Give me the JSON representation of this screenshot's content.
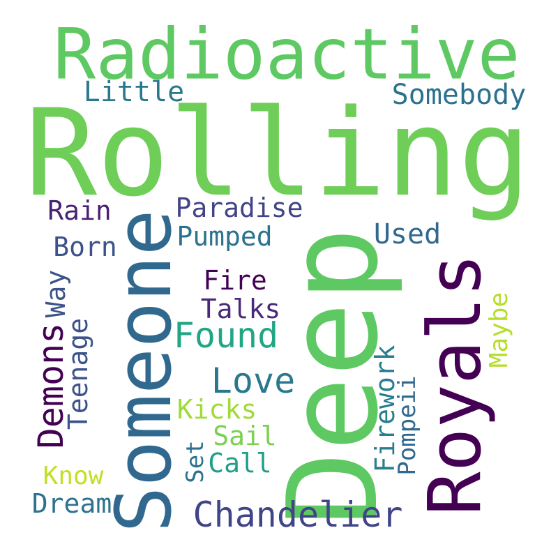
{
  "words": {
    "radioactive": {
      "text": "Radioactive",
      "color": "#5ec962"
    },
    "rolling": {
      "text": "Rolling",
      "color": "#6ece58"
    },
    "deep": {
      "text": "Deep",
      "color": "#5ec962"
    },
    "someone": {
      "text": "Someone",
      "color": "#31688e"
    },
    "royals": {
      "text": "Royals",
      "color": "#440154"
    },
    "little": {
      "text": "Little",
      "color": "#2a788e"
    },
    "somebody": {
      "text": "Somebody",
      "color": "#2c728e"
    },
    "rain": {
      "text": "Rain",
      "color": "#482173"
    },
    "paradise": {
      "text": "Paradise",
      "color": "#414487"
    },
    "pumped": {
      "text": "Pumped",
      "color": "#2c728e"
    },
    "used": {
      "text": "Used",
      "color": "#31688e"
    },
    "born": {
      "text": "Born",
      "color": "#3b528b"
    },
    "fire": {
      "text": "Fire",
      "color": "#440154"
    },
    "way": {
      "text": "Way",
      "color": "#3b528b"
    },
    "talks": {
      "text": "Talks",
      "color": "#482878"
    },
    "maybe": {
      "text": "Maybe",
      "color": "#b5de2b"
    },
    "found": {
      "text": "Found",
      "color": "#21a685"
    },
    "demons": {
      "text": "Demons",
      "color": "#440154"
    },
    "teenage": {
      "text": "Teenage",
      "color": "#3b528b"
    },
    "firework": {
      "text": "Firework",
      "color": "#287d8e"
    },
    "love": {
      "text": "Love",
      "color": "#2a788e"
    },
    "pompeii": {
      "text": "Pompeii",
      "color": "#31688e"
    },
    "kicks": {
      "text": "Kicks",
      "color": "#a0da39"
    },
    "sail": {
      "text": "Sail",
      "color": "#7ad151"
    },
    "set": {
      "text": "Set",
      "color": "#2c728e"
    },
    "call": {
      "text": "Call",
      "color": "#1f9e89"
    },
    "know": {
      "text": "Know",
      "color": "#c2df23"
    },
    "dream": {
      "text": "Dream",
      "color": "#2c728e"
    },
    "chandelier": {
      "text": "Chandelier",
      "color": "#414487"
    }
  }
}
